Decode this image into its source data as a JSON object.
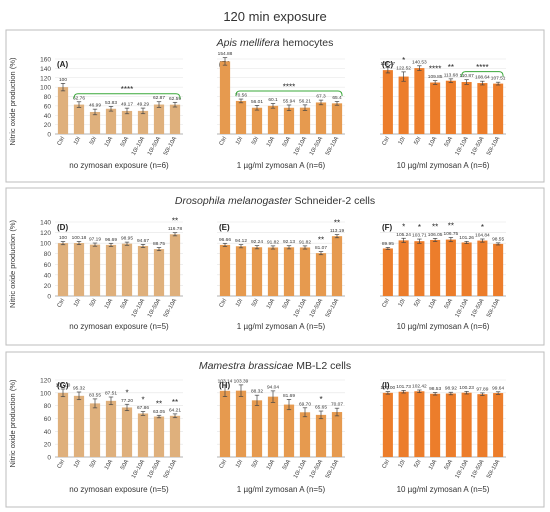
{
  "figure": {
    "title": "120 min exposure",
    "ylabel": "Nitric oxide production (%)",
    "section_titles": [
      {
        "italic": "Apis mellifera",
        "rest": " hemocytes"
      },
      {
        "italic": "Drosophila melanogaster",
        "rest": " Schneider-2 cells"
      },
      {
        "italic": "Mamestra  brassicae",
        "rest": " MB-L2 cells"
      }
    ],
    "colors": {
      "light": "#dfb07c",
      "medium": "#e69a4f",
      "dark": "#ec7d2b",
      "bracket": "#3aa83a",
      "axis": "#9a9a9a",
      "text": "#333333"
    }
  },
  "chart_data": [
    {
      "panel_label": "(A)",
      "type": "bar",
      "color": "light",
      "xlabel": "no zymosan exposure (n=6)",
      "categories": [
        "Ctrl",
        "10I",
        "50I",
        "10A",
        "50A",
        "10I-10A",
        "10I-50A",
        "50I-10A"
      ],
      "values": [
        100,
        62.76,
        46.99,
        53.83,
        49.17,
        49.29,
        62.87,
        62.59
      ],
      "value_labels": [
        "100",
        "62.76",
        "46.99",
        "53.83",
        "49.17",
        "49.29",
        "62.87",
        "62.59"
      ],
      "errors": [
        8,
        6,
        6,
        5,
        6,
        6,
        6,
        5
      ],
      "ylim": [
        0,
        160
      ],
      "yticks": [
        0,
        20,
        40,
        60,
        80,
        100,
        120,
        140,
        160
      ],
      "tick_labels": [
        "0",
        "20",
        "40",
        "60",
        "80",
        "100",
        "120",
        "140",
        "160"
      ],
      "stars": [],
      "bracket": {
        "from": 1,
        "to": 7,
        "text": "****"
      }
    },
    {
      "panel_label": "(B)",
      "type": "bar",
      "color": "medium",
      "xlabel": "1 µg/ml zymosan A (n=6)",
      "categories": [
        "Ctrl",
        "10I",
        "50I",
        "10A",
        "50A",
        "10I-10A",
        "10I-50A",
        "50I-10A"
      ],
      "values": [
        154.88,
        70.56,
        56.01,
        60.1,
        55.94,
        56.21,
        67.3,
        65.4
      ],
      "value_labels": [
        "154.88",
        "70.56",
        "56.01",
        "60.1",
        "55.94",
        "56.21",
        "67.3",
        "65.4"
      ],
      "errors": [
        8,
        4,
        5,
        5,
        6,
        6,
        5,
        4
      ],
      "ylim": [
        0,
        160
      ],
      "yticks": [
        0,
        20,
        40,
        60,
        80,
        100,
        120,
        140,
        160
      ],
      "tick_labels": [],
      "stars": [],
      "bracket": {
        "from": 1,
        "to": 7,
        "text": "****"
      }
    },
    {
      "panel_label": "(C)",
      "type": "bar",
      "color": "dark",
      "xlabel": "10 µg/ml zymosan A (n=6)",
      "categories": [
        "Ctrl",
        "10I",
        "50I",
        "10A",
        "50A",
        "10I-10A",
        "10I-50A",
        "50I-10A"
      ],
      "values": [
        136.27,
        122.52,
        140.53,
        109.85,
        113.68,
        110.87,
        108.64,
        107.51
      ],
      "value_labels": [
        "136.27",
        "122.52",
        "140.53",
        "109.85",
        "113.68",
        "110.87",
        "108.64",
        "107.51"
      ],
      "errors": [
        6,
        10,
        5,
        4,
        4,
        5,
        4,
        3
      ],
      "ylim": [
        0,
        160
      ],
      "yticks": [
        0,
        20,
        40,
        60,
        80,
        100,
        120,
        140,
        160
      ],
      "tick_labels": [],
      "stars": [
        "",
        "*",
        "",
        "****",
        "**",
        "",
        "",
        ""
      ],
      "bracket": {
        "from": 5,
        "to": 7,
        "text": "****"
      }
    },
    {
      "panel_label": "(D)",
      "type": "bar",
      "color": "light",
      "xlabel": "no zymosan exposure (n=5)",
      "categories": [
        "Ctrl",
        "10I",
        "50I",
        "10A",
        "50A",
        "10I-10A",
        "10I-50A",
        "50I-10A"
      ],
      "values": [
        100,
        100.18,
        97.19,
        96.69,
        98.95,
        94.67,
        88.75,
        116.78
      ],
      "value_labels": [
        "100",
        "100.18",
        "97.19",
        "96.69",
        "98.95",
        "94.67",
        "88.75",
        "116.78"
      ],
      "errors": [
        3,
        3,
        3,
        3,
        3,
        3,
        3,
        3
      ],
      "ylim": [
        0,
        140
      ],
      "yticks": [
        0,
        20,
        40,
        60,
        80,
        100,
        120,
        140
      ],
      "tick_labels": [
        "0",
        "20",
        "40",
        "60",
        "80",
        "100",
        "120",
        "140"
      ],
      "stars": [
        "",
        "",
        "",
        "",
        "",
        "",
        "",
        "**"
      ],
      "bracket": null
    },
    {
      "panel_label": "(E)",
      "type": "bar",
      "color": "medium",
      "xlabel": "1 µg/ml zymosan A (n=5)",
      "categories": [
        "Ctrl",
        "10I",
        "50I",
        "10A",
        "50A",
        "10I-10A",
        "10I-50A",
        "50I-10A"
      ],
      "values": [
        96.66,
        94.12,
        92.24,
        91.82,
        92.13,
        91.82,
        81.07,
        113.19
      ],
      "value_labels": [
        "96.66",
        "94.12",
        "92.24",
        "91.82",
        "92.13",
        "91.82",
        "81.07",
        "113.19"
      ],
      "errors": [
        3,
        3,
        3,
        3,
        3,
        3,
        3,
        3
      ],
      "ylim": [
        0,
        140
      ],
      "yticks": [
        0,
        20,
        40,
        60,
        80,
        100,
        120,
        140
      ],
      "tick_labels": [],
      "stars": [
        "",
        "",
        "",
        "",
        "",
        "",
        "**",
        "**"
      ],
      "bracket": null
    },
    {
      "panel_label": "(F)",
      "type": "bar",
      "color": "dark",
      "xlabel": "10 µg/ml zymosan A (n=6)",
      "categories": [
        "Ctrl",
        "10I",
        "50I",
        "10A",
        "50A",
        "10I-10A",
        "10I-50A",
        "50I-10A"
      ],
      "values": [
        89.95,
        105.24,
        103.71,
        106.05,
        106.75,
        101.26,
        104.84,
        98.55
      ],
      "value_labels": [
        "89.95",
        "105.24",
        "103.71",
        "106.05",
        "106.75",
        "101.26",
        "104.84",
        "98.55"
      ],
      "errors": [
        2,
        4,
        4,
        3,
        4,
        2,
        3,
        2
      ],
      "ylim": [
        0,
        140
      ],
      "yticks": [
        0,
        20,
        40,
        60,
        80,
        100,
        120,
        140
      ],
      "tick_labels": [],
      "stars": [
        "",
        "*",
        "*",
        "**",
        "**",
        "",
        "*",
        ""
      ],
      "bracket": null
    },
    {
      "panel_label": "(G)",
      "type": "bar",
      "color": "light",
      "xlabel": "no zymosan exposure (n=5)",
      "categories": [
        "Ctrl",
        "10I",
        "50I",
        "10A",
        "50A",
        "10I-10A",
        "10I-50A",
        "50I-10A"
      ],
      "values": [
        100,
        95.32,
        83.55,
        87.51,
        77.2,
        67.86,
        63.05,
        64.21
      ],
      "value_labels": [
        "100.00",
        "95.32",
        "83.55",
        "87.51",
        "77.20",
        "67.86",
        "63.05",
        "64.21"
      ],
      "errors": [
        6,
        6,
        7,
        6,
        5,
        3,
        2,
        3
      ],
      "ylim": [
        0,
        120
      ],
      "yticks": [
        0,
        20,
        40,
        60,
        80,
        100,
        120
      ],
      "tick_labels": [
        "0",
        "20",
        "40",
        "60",
        "80",
        "100",
        "120"
      ],
      "stars": [
        "",
        "",
        "",
        "",
        "*",
        "*",
        "**",
        "**"
      ],
      "bracket": null
    },
    {
      "panel_label": "(H)",
      "type": "bar",
      "color": "medium",
      "xlabel": "1 µg/ml zymosan A (n=5)",
      "categories": [
        "Ctrl",
        "10I",
        "50I",
        "10A",
        "50A",
        "10I-10A",
        "10I-50A",
        "50I-10A"
      ],
      "values": [
        103.14,
        103.39,
        88.32,
        94.04,
        81.69,
        69.7,
        65.65,
        70.07
      ],
      "value_labels": [
        "103.14",
        "103.39",
        "88.32",
        "94.04",
        "81.69",
        "69.70",
        "65.65",
        "70.07"
      ],
      "errors": [
        9,
        9,
        8,
        9,
        8,
        7,
        6,
        6
      ],
      "ylim": [
        0,
        120
      ],
      "yticks": [
        0,
        20,
        40,
        60,
        80,
        100,
        120
      ],
      "tick_labels": [],
      "stars": [
        "",
        "",
        "",
        "",
        "",
        "",
        "*",
        ""
      ],
      "bracket": null
    },
    {
      "panel_label": "(I)",
      "type": "bar",
      "color": "dark",
      "xlabel": "10 µg/ml zymosan A (n=5)",
      "categories": [
        "Ctrl",
        "10I",
        "50I",
        "10A",
        "50A",
        "10I-10A",
        "10I-50A",
        "50I-10A"
      ],
      "values": [
        100,
        101.73,
        102.42,
        98.53,
        98.92,
        100.23,
        97.89,
        99.64
      ],
      "value_labels": [
        "100.00",
        "101.73",
        "102.42",
        "98.53",
        "98.92",
        "100.23",
        "97.89",
        "99.64"
      ],
      "errors": [
        2,
        2,
        2,
        2,
        2,
        2,
        2,
        2
      ],
      "ylim": [
        0,
        120
      ],
      "yticks": [
        0,
        20,
        40,
        60,
        80,
        100,
        120
      ],
      "tick_labels": [],
      "stars": [],
      "bracket": null
    }
  ]
}
